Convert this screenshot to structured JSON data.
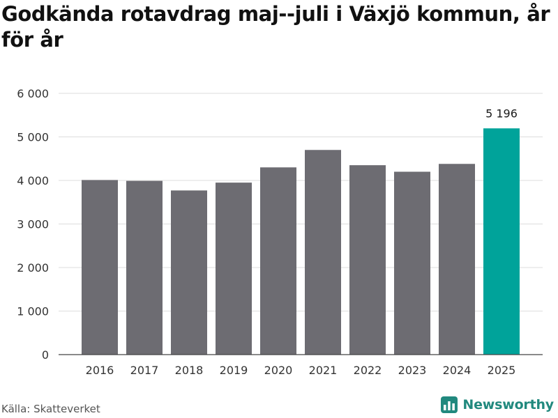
{
  "chart_data": {
    "type": "bar",
    "title": "Godkända rotavdrag maj--juli i Växjö kommun, år för år",
    "categories": [
      "2016",
      "2017",
      "2018",
      "2019",
      "2020",
      "2021",
      "2022",
      "2023",
      "2024",
      "2025"
    ],
    "values": [
      4010,
      3990,
      3770,
      3950,
      4300,
      4700,
      4350,
      4200,
      4380,
      5196
    ],
    "ylim": [
      0,
      6000
    ],
    "yticks": [
      0,
      1000,
      2000,
      3000,
      4000,
      5000,
      6000
    ],
    "ytick_labels": [
      "0",
      "1 000",
      "2 000",
      "3 000",
      "4 000",
      "5 000",
      "6 000"
    ],
    "grid": true,
    "highlight": {
      "category": "2025",
      "value_label": "5 196"
    },
    "colors": {
      "bar": "#6d6c72",
      "highlight": "#00a39a",
      "grid": "#dddddd",
      "axis": "#444444"
    }
  },
  "footer": {
    "source": "Källa: Skatteverket",
    "brand": "Newsworthy",
    "brand_icon": "bar-chart-logo-icon"
  }
}
